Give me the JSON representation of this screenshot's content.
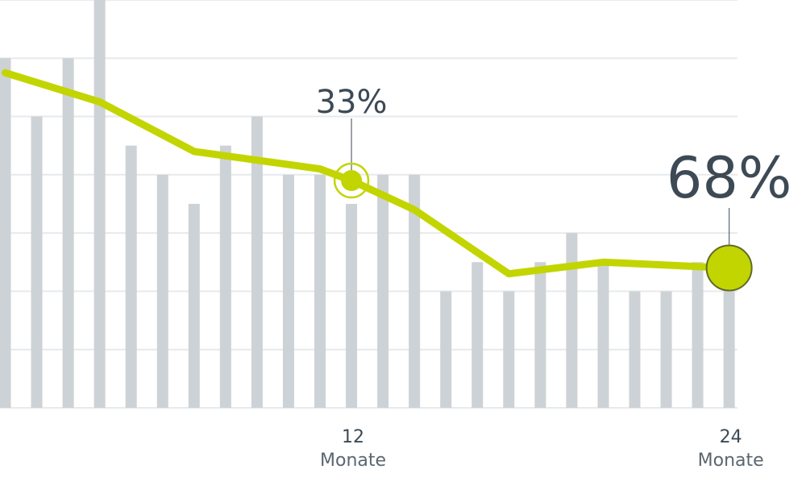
{
  "chart_data": {
    "type": "bar",
    "title": "",
    "xlabel": "",
    "ylabel": "",
    "bars": {
      "x": [
        1,
        2,
        3,
        4,
        5,
        6,
        7,
        8,
        9,
        10,
        11,
        12,
        13,
        14,
        15,
        16,
        17,
        18,
        19,
        20,
        21,
        22,
        23,
        24
      ],
      "values": [
        6.0,
        5.0,
        6.0,
        7.0,
        4.5,
        4.0,
        3.5,
        4.5,
        5.0,
        4.0,
        4.0,
        3.5,
        4.0,
        4.0,
        2.0,
        2.5,
        2.0,
        2.5,
        3.0,
        2.5,
        2.0,
        2.0,
        2.5,
        2.0
      ]
    },
    "line": {
      "x": [
        1,
        4,
        7,
        11,
        12,
        14,
        17,
        20,
        24
      ],
      "values": [
        5.75,
        5.25,
        4.4,
        4.1,
        3.9,
        3.4,
        2.3,
        2.5,
        2.4
      ]
    },
    "ylim": [
      0,
      7
    ],
    "grid": true,
    "x_ticks": [
      {
        "x": 12,
        "number": "12",
        "unit": "Monate"
      },
      {
        "x": 24,
        "number": "24",
        "unit": "Monate"
      }
    ],
    "annotations": [
      {
        "x": 12,
        "label": "33%",
        "size": "small"
      },
      {
        "x": 24,
        "label": "68%",
        "size": "large"
      }
    ],
    "colors": {
      "bars": "#cdd2d6",
      "line": "#c2d500",
      "text": "#3d4a55",
      "grid": "#e7eaec"
    }
  }
}
